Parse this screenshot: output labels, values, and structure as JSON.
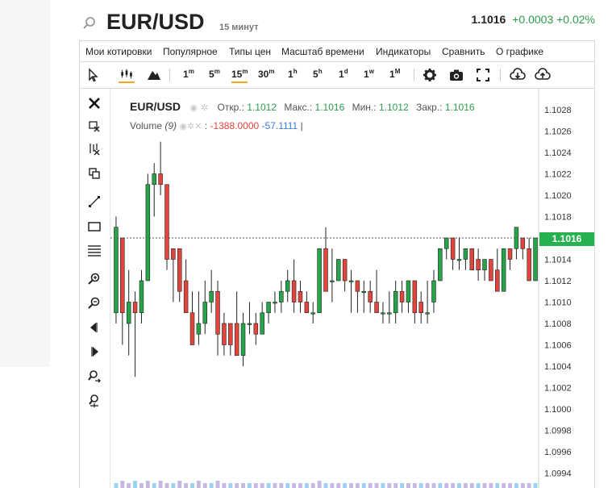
{
  "header": {
    "symbol": "EUR/USD",
    "timeframe": "15 минут",
    "last_price": "1.1016",
    "change": "+0.0003",
    "change_pct": "+0.02%",
    "search_icon": "search-icon"
  },
  "menu": {
    "items": [
      "Мои котировки",
      "Популярное",
      "Типы цен",
      "Масштаб времени",
      "Индикаторы",
      "Сравнить",
      "О графике"
    ]
  },
  "toolbar": {
    "intervals": [
      {
        "base": "1",
        "sup": "m"
      },
      {
        "base": "5",
        "sup": "m"
      },
      {
        "base": "15",
        "sup": "m"
      },
      {
        "base": "30",
        "sup": "m"
      },
      {
        "base": "1",
        "sup": "h"
      },
      {
        "base": "5",
        "sup": "h"
      },
      {
        "base": "1",
        "sup": "d"
      },
      {
        "base": "1",
        "sup": "w"
      },
      {
        "base": "1",
        "sup": "M"
      }
    ],
    "active_interval": "15m",
    "icons": [
      "cursor-icon",
      "candlestick-chart-icon",
      "area-chart-icon",
      "settings-gear-icon",
      "camera-icon",
      "fullscreen-icon",
      "download-icon",
      "upload-icon"
    ]
  },
  "sidebar_tools": [
    "close-icon",
    "delete-drawings-icon",
    "delete-indicators-icon",
    "clone-icon",
    "trend-line-icon",
    "rectangle-icon",
    "fibonacci-icon",
    "zoom-in-icon",
    "zoom-out-icon",
    "scroll-left-icon",
    "scroll-right-icon",
    "zoom-reset-icon",
    "auto-scale-icon"
  ],
  "legend": {
    "symbol": "EUR/USD",
    "open_label": "Откр.:",
    "open": "1.1012",
    "high_label": "Макс.:",
    "high": "1.1016",
    "low_label": "Мин.:",
    "low": "1.1012",
    "close_label": "Закр.:",
    "close": "1.1016"
  },
  "volume": {
    "label": "Volume",
    "param": "(9)",
    "value1": "-1388.0000",
    "value2": "-57.1111"
  },
  "colors": {
    "up": "#27a34a",
    "down": "#e2453c",
    "accent": "#f5a623",
    "badge": "#27b04e"
  },
  "chart_data": {
    "type": "candlestick",
    "current_price": 1.1016,
    "y_ticks": [
      "1.1028",
      "1.1026",
      "1.1024",
      "1.1022",
      "1.1020",
      "1.1018",
      "1.1016",
      "1.1014",
      "1.1012",
      "1.1010",
      "1.1008",
      "1.1006",
      "1.1004",
      "1.1002",
      "1.1000",
      "1.0998",
      "1.0996",
      "1.0994"
    ],
    "ylim": [
      1.0993,
      1.103
    ],
    "candles": [
      {
        "o": 1.1009,
        "h": 1.1018,
        "l": 1.1008,
        "c": 1.1017
      },
      {
        "o": 1.1016,
        "h": 1.1016,
        "l": 1.1006,
        "c": 1.1009
      },
      {
        "o": 1.1008,
        "h": 1.1013,
        "l": 1.1005,
        "c": 1.101
      },
      {
        "o": 1.101,
        "h": 1.1011,
        "l": 1.1003,
        "c": 1.1009
      },
      {
        "o": 1.1009,
        "h": 1.1013,
        "l": 1.1008,
        "c": 1.1012
      },
      {
        "o": 1.1012,
        "h": 1.1022,
        "l": 1.1012,
        "c": 1.1021
      },
      {
        "o": 1.1021,
        "h": 1.1023,
        "l": 1.1018,
        "c": 1.1022
      },
      {
        "o": 1.1022,
        "h": 1.1025,
        "l": 1.102,
        "c": 1.1021
      },
      {
        "o": 1.1021,
        "h": 1.1021,
        "l": 1.1013,
        "c": 1.1014
      },
      {
        "o": 1.1015,
        "h": 1.1015,
        "l": 1.101,
        "c": 1.1014
      },
      {
        "o": 1.1015,
        "h": 1.1015,
        "l": 1.101,
        "c": 1.1011
      },
      {
        "o": 1.1012,
        "h": 1.1014,
        "l": 1.1009,
        "c": 1.1009
      },
      {
        "o": 1.1009,
        "h": 1.1011,
        "l": 1.1006,
        "c": 1.1006
      },
      {
        "o": 1.1007,
        "h": 1.1011,
        "l": 1.1006,
        "c": 1.1008
      },
      {
        "o": 1.1008,
        "h": 1.1012,
        "l": 1.1007,
        "c": 1.101
      },
      {
        "o": 1.101,
        "h": 1.1013,
        "l": 1.1009,
        "c": 1.1011
      },
      {
        "o": 1.1011,
        "h": 1.1012,
        "l": 1.1005,
        "c": 1.1007
      },
      {
        "o": 1.1008,
        "h": 1.1009,
        "l": 1.1005,
        "c": 1.1006
      },
      {
        "o": 1.1008,
        "h": 1.1008,
        "l": 1.1005,
        "c": 1.1006
      },
      {
        "o": 1.1008,
        "h": 1.1011,
        "l": 1.1005,
        "c": 1.1005
      },
      {
        "o": 1.1005,
        "h": 1.1009,
        "l": 1.1004,
        "c": 1.1008
      },
      {
        "o": 1.1008,
        "h": 1.101,
        "l": 1.1007,
        "c": 1.1008
      },
      {
        "o": 1.1008,
        "h": 1.1009,
        "l": 1.1006,
        "c": 1.1007
      },
      {
        "o": 1.1007,
        "h": 1.101,
        "l": 1.1007,
        "c": 1.1009
      },
      {
        "o": 1.1009,
        "h": 1.101,
        "l": 1.1008,
        "c": 1.101
      },
      {
        "o": 1.101,
        "h": 1.1011,
        "l": 1.1009,
        "c": 1.101
      },
      {
        "o": 1.101,
        "h": 1.1012,
        "l": 1.1009,
        "c": 1.1011
      },
      {
        "o": 1.1011,
        "h": 1.1013,
        "l": 1.101,
        "c": 1.1012
      },
      {
        "o": 1.1012,
        "h": 1.1014,
        "l": 1.1009,
        "c": 1.101
      },
      {
        "o": 1.1011,
        "h": 1.1012,
        "l": 1.1009,
        "c": 1.101
      },
      {
        "o": 1.101,
        "h": 1.1011,
        "l": 1.1009,
        "c": 1.1009
      },
      {
        "o": 1.1009,
        "h": 1.101,
        "l": 1.1008,
        "c": 1.1009
      },
      {
        "o": 1.1009,
        "h": 1.1015,
        "l": 1.1009,
        "c": 1.1015
      },
      {
        "o": 1.1015,
        "h": 1.1017,
        "l": 1.1011,
        "c": 1.1011
      },
      {
        "o": 1.1012,
        "h": 1.1015,
        "l": 1.101,
        "c": 1.1012
      },
      {
        "o": 1.1012,
        "h": 1.1014,
        "l": 1.1012,
        "c": 1.1014
      },
      {
        "o": 1.1014,
        "h": 1.1014,
        "l": 1.1011,
        "c": 1.1012
      },
      {
        "o": 1.1012,
        "h": 1.1013,
        "l": 1.1009,
        "c": 1.1012
      },
      {
        "o": 1.1012,
        "h": 1.1012,
        "l": 1.1009,
        "c": 1.1011
      },
      {
        "o": 1.1011,
        "h": 1.1012,
        "l": 1.1009,
        "c": 1.1011
      },
      {
        "o": 1.1011,
        "h": 1.1012,
        "l": 1.1009,
        "c": 1.101
      },
      {
        "o": 1.101,
        "h": 1.1013,
        "l": 1.1009,
        "c": 1.1009
      },
      {
        "o": 1.1009,
        "h": 1.101,
        "l": 1.1008,
        "c": 1.1009
      },
      {
        "o": 1.1009,
        "h": 1.1011,
        "l": 1.1008,
        "c": 1.1009
      },
      {
        "o": 1.1009,
        "h": 1.1012,
        "l": 1.1008,
        "c": 1.1011
      },
      {
        "o": 1.1011,
        "h": 1.1012,
        "l": 1.1009,
        "c": 1.101
      },
      {
        "o": 1.101,
        "h": 1.1012,
        "l": 1.1009,
        "c": 1.1012
      },
      {
        "o": 1.1012,
        "h": 1.1012,
        "l": 1.1008,
        "c": 1.1009
      },
      {
        "o": 1.101,
        "h": 1.1011,
        "l": 1.1008,
        "c": 1.1009
      },
      {
        "o": 1.1009,
        "h": 1.1012,
        "l": 1.1008,
        "c": 1.1009
      },
      {
        "o": 1.101,
        "h": 1.1013,
        "l": 1.1009,
        "c": 1.1012
      },
      {
        "o": 1.1012,
        "h": 1.1015,
        "l": 1.1012,
        "c": 1.1015
      },
      {
        "o": 1.1015,
        "h": 1.1016,
        "l": 1.1014,
        "c": 1.1016
      },
      {
        "o": 1.1016,
        "h": 1.1016,
        "l": 1.1013,
        "c": 1.1014
      },
      {
        "o": 1.1014,
        "h": 1.1016,
        "l": 1.1013,
        "c": 1.1014
      },
      {
        "o": 1.1014,
        "h": 1.1015,
        "l": 1.1013,
        "c": 1.1015
      },
      {
        "o": 1.1015,
        "h": 1.1015,
        "l": 1.1013,
        "c": 1.1013
      },
      {
        "o": 1.1014,
        "h": 1.1015,
        "l": 1.1012,
        "c": 1.1013
      },
      {
        "o": 1.1013,
        "h": 1.1014,
        "l": 1.1012,
        "c": 1.1014
      },
      {
        "o": 1.1014,
        "h": 1.1014,
        "l": 1.1012,
        "c": 1.1012
      },
      {
        "o": 1.1013,
        "h": 1.1015,
        "l": 1.1011,
        "c": 1.1011
      },
      {
        "o": 1.1011,
        "h": 1.1015,
        "l": 1.1011,
        "c": 1.1015
      },
      {
        "o": 1.1015,
        "h": 1.1015,
        "l": 1.1013,
        "c": 1.1014
      },
      {
        "o": 1.1015,
        "h": 1.1017,
        "l": 1.1014,
        "c": 1.1017
      },
      {
        "o": 1.1016,
        "h": 1.1016,
        "l": 1.1014,
        "c": 1.1015
      },
      {
        "o": 1.1015,
        "h": 1.1016,
        "l": 1.1012,
        "c": 1.1012
      },
      {
        "o": 1.1012,
        "h": 1.1016,
        "l": 1.1012,
        "c": 1.1016
      }
    ],
    "volume_bars": [
      2,
      3,
      2,
      3,
      2,
      3,
      2,
      3,
      2,
      2,
      3,
      2,
      2,
      3,
      2,
      2,
      3,
      2,
      2,
      2,
      2,
      2,
      2,
      2,
      2,
      2,
      2,
      2,
      2,
      2,
      2,
      2,
      3,
      2,
      2,
      2,
      2,
      2,
      2,
      2,
      2,
      2,
      2,
      2,
      2,
      2,
      2,
      2,
      2,
      2,
      2,
      2,
      2,
      2,
      2,
      2,
      2,
      2,
      2,
      2,
      2,
      2,
      2,
      2,
      2,
      2,
      2
    ]
  }
}
